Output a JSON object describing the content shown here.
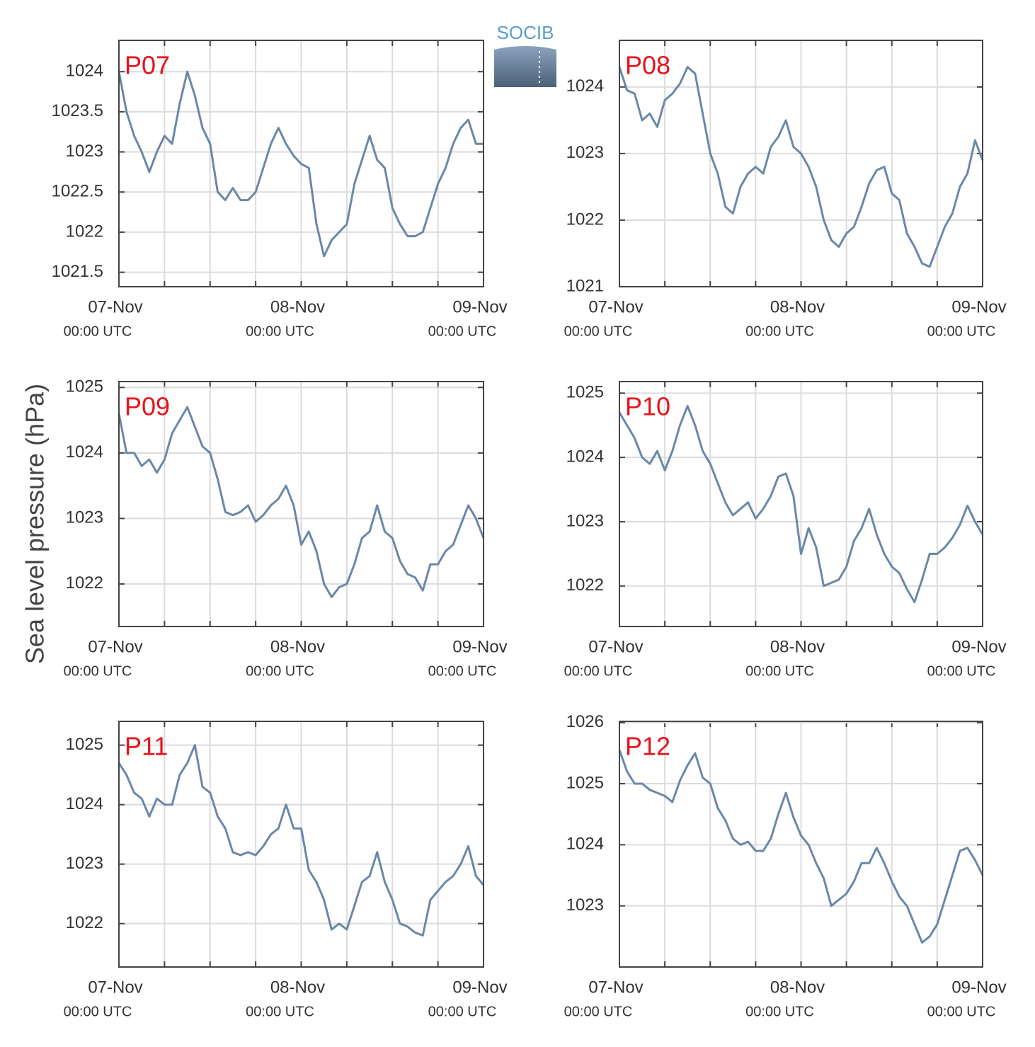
{
  "ylabel": "Sea level pressure (hPa)",
  "logo_text": "SOCIB",
  "chart_data": [
    {
      "type": "line",
      "title": "P07",
      "x": [
        0,
        1,
        2,
        3,
        4,
        5,
        6,
        7,
        8,
        9,
        10,
        11,
        12,
        13,
        14,
        15,
        16,
        17,
        18,
        19,
        20,
        21,
        22,
        23,
        24,
        25,
        26,
        27,
        28,
        29,
        30,
        31,
        32,
        33,
        34,
        35,
        36,
        37,
        38,
        39,
        40,
        41,
        42,
        43,
        44,
        45,
        46,
        47,
        48
      ],
      "series": [
        {
          "color": "#6a88a8",
          "values": [
            1024.0,
            1023.5,
            1023.2,
            1023.0,
            1022.75,
            1023.0,
            1023.2,
            1023.1,
            1023.6,
            1024.0,
            1023.7,
            1023.3,
            1023.1,
            1022.5,
            1022.4,
            1022.55,
            1022.4,
            1022.4,
            1022.5,
            1022.8,
            1023.1,
            1023.3,
            1023.1,
            1022.95,
            1022.85,
            1022.8,
            1022.1,
            1021.7,
            1021.9,
            1022.0,
            1022.1,
            1022.6,
            1022.9,
            1023.2,
            1022.9,
            1022.8,
            1022.3,
            1022.1,
            1021.95,
            1021.95,
            1022.0,
            1022.3,
            1022.6,
            1022.8,
            1023.1,
            1023.3,
            1023.4,
            1023.1,
            1023.1
          ]
        }
      ],
      "xlim": [
        0,
        48
      ],
      "ylim": [
        1021.32,
        1024.39
      ],
      "yticks": [
        1021.5,
        1022,
        1022.5,
        1023,
        1023.5,
        1024
      ],
      "xticks": [
        {
          "value": 0,
          "label": "07-Nov",
          "sublabel": "00:00 UTC"
        },
        {
          "value": 24,
          "label": "08-Nov",
          "sublabel": "00:00 UTC"
        },
        {
          "value": 48,
          "label": "09-Nov",
          "sublabel": "00:00 UTC"
        }
      ],
      "xminor_ticks": [
        6,
        12,
        18,
        30,
        36,
        42
      ],
      "grid": true
    },
    {
      "type": "line",
      "title": "P08",
      "x": [
        0,
        1,
        2,
        3,
        4,
        5,
        6,
        7,
        8,
        9,
        10,
        11,
        12,
        13,
        14,
        15,
        16,
        17,
        18,
        19,
        20,
        21,
        22,
        23,
        24,
        25,
        26,
        27,
        28,
        29,
        30,
        31,
        32,
        33,
        34,
        35,
        36,
        37,
        38,
        39,
        40,
        41,
        42,
        43,
        44,
        45,
        46,
        47,
        48
      ],
      "series": [
        {
          "color": "#6a88a8",
          "values": [
            1024.3,
            1023.95,
            1023.9,
            1023.5,
            1023.6,
            1023.4,
            1023.8,
            1023.9,
            1024.05,
            1024.3,
            1024.2,
            1023.6,
            1023.0,
            1022.7,
            1022.2,
            1022.1,
            1022.5,
            1022.7,
            1022.8,
            1022.7,
            1023.1,
            1023.25,
            1023.5,
            1023.1,
            1023.0,
            1022.8,
            1022.5,
            1022.0,
            1021.7,
            1021.6,
            1021.8,
            1021.9,
            1022.2,
            1022.55,
            1022.75,
            1022.8,
            1022.4,
            1022.3,
            1021.8,
            1021.6,
            1021.35,
            1021.3,
            1021.6,
            1021.9,
            1022.1,
            1022.5,
            1022.7,
            1023.2,
            1022.9
          ]
        }
      ],
      "xlim": [
        0,
        48
      ],
      "ylim": [
        1021,
        1024.7
      ],
      "yticks": [
        1021,
        1022,
        1023,
        1024
      ],
      "xticks": [
        {
          "value": 0,
          "label": "07-Nov",
          "sublabel": "00:00 UTC"
        },
        {
          "value": 24,
          "label": "08-Nov",
          "sublabel": "00:00 UTC"
        },
        {
          "value": 48,
          "label": "09-Nov",
          "sublabel": "00:00 UTC"
        }
      ],
      "xminor_ticks": [
        6,
        12,
        18,
        30,
        36,
        42
      ],
      "grid": true
    },
    {
      "type": "line",
      "title": "P09",
      "x": [
        0,
        1,
        2,
        3,
        4,
        5,
        6,
        7,
        8,
        9,
        10,
        11,
        12,
        13,
        14,
        15,
        16,
        17,
        18,
        19,
        20,
        21,
        22,
        23,
        24,
        25,
        26,
        27,
        28,
        29,
        30,
        31,
        32,
        33,
        34,
        35,
        36,
        37,
        38,
        39,
        40,
        41,
        42,
        43,
        44,
        45,
        46,
        47,
        48
      ],
      "series": [
        {
          "color": "#6a88a8",
          "values": [
            1024.6,
            1024.0,
            1024.0,
            1023.8,
            1023.9,
            1023.7,
            1023.9,
            1024.3,
            1024.5,
            1024.7,
            1024.4,
            1024.1,
            1024.0,
            1023.6,
            1023.1,
            1023.05,
            1023.1,
            1023.2,
            1022.95,
            1023.05,
            1023.2,
            1023.3,
            1023.5,
            1023.2,
            1022.6,
            1022.8,
            1022.5,
            1022.0,
            1021.8,
            1021.95,
            1022.0,
            1022.3,
            1022.7,
            1022.8,
            1023.2,
            1022.8,
            1022.7,
            1022.35,
            1022.15,
            1022.1,
            1021.9,
            1022.3,
            1022.3,
            1022.5,
            1022.6,
            1022.9,
            1023.2,
            1023.0,
            1022.7
          ]
        }
      ],
      "xlim": [
        0,
        48
      ],
      "ylim": [
        1021.35,
        1025.09
      ],
      "yticks": [
        1022,
        1023,
        1024,
        1025
      ],
      "xticks": [
        {
          "value": 0,
          "label": "07-Nov",
          "sublabel": "00:00 UTC"
        },
        {
          "value": 24,
          "label": "08-Nov",
          "sublabel": "00:00 UTC"
        },
        {
          "value": 48,
          "label": "09-Nov",
          "sublabel": "00:00 UTC"
        }
      ],
      "xminor_ticks": [
        6,
        12,
        18,
        30,
        36,
        42
      ],
      "grid": true
    },
    {
      "type": "line",
      "title": "P10",
      "x": [
        0,
        1,
        2,
        3,
        4,
        5,
        6,
        7,
        8,
        9,
        10,
        11,
        12,
        13,
        14,
        15,
        16,
        17,
        18,
        19,
        20,
        21,
        22,
        23,
        24,
        25,
        26,
        27,
        28,
        29,
        30,
        31,
        32,
        33,
        34,
        35,
        36,
        37,
        38,
        39,
        40,
        41,
        42,
        43,
        44,
        45,
        46,
        47,
        48
      ],
      "series": [
        {
          "color": "#6a88a8",
          "values": [
            1024.7,
            1024.5,
            1024.3,
            1024.0,
            1023.9,
            1024.1,
            1023.8,
            1024.1,
            1024.5,
            1024.8,
            1024.5,
            1024.1,
            1023.9,
            1023.6,
            1023.3,
            1023.1,
            1023.2,
            1023.3,
            1023.05,
            1023.2,
            1023.4,
            1023.7,
            1023.75,
            1023.4,
            1022.5,
            1022.9,
            1022.6,
            1022.0,
            1022.05,
            1022.1,
            1022.3,
            1022.7,
            1022.9,
            1023.2,
            1022.8,
            1022.5,
            1022.3,
            1022.2,
            1021.95,
            1021.75,
            1022.1,
            1022.5,
            1022.5,
            1022.6,
            1022.75,
            1022.95,
            1023.25,
            1023.0,
            1022.8
          ]
        }
      ],
      "xlim": [
        0,
        48
      ],
      "ylim": [
        1021.37,
        1025.18
      ],
      "yticks": [
        1022,
        1023,
        1024,
        1025
      ],
      "xticks": [
        {
          "value": 0,
          "label": "07-Nov",
          "sublabel": "00:00 UTC"
        },
        {
          "value": 24,
          "label": "08-Nov",
          "sublabel": "00:00 UTC"
        },
        {
          "value": 48,
          "label": "09-Nov",
          "sublabel": "00:00 UTC"
        }
      ],
      "xminor_ticks": [
        6,
        12,
        18,
        30,
        36,
        42
      ],
      "grid": true
    },
    {
      "type": "line",
      "title": "P11",
      "x": [
        0,
        1,
        2,
        3,
        4,
        5,
        6,
        7,
        8,
        9,
        10,
        11,
        12,
        13,
        14,
        15,
        16,
        17,
        18,
        19,
        20,
        21,
        22,
        23,
        24,
        25,
        26,
        27,
        28,
        29,
        30,
        31,
        32,
        33,
        34,
        35,
        36,
        37,
        38,
        39,
        40,
        41,
        42,
        43,
        44,
        45,
        46,
        47,
        48
      ],
      "series": [
        {
          "color": "#6a88a8",
          "values": [
            1024.7,
            1024.5,
            1024.2,
            1024.1,
            1023.8,
            1024.1,
            1024.0,
            1024.0,
            1024.5,
            1024.7,
            1025.0,
            1024.3,
            1024.2,
            1023.8,
            1023.6,
            1023.2,
            1023.15,
            1023.2,
            1023.15,
            1023.3,
            1023.5,
            1023.6,
            1024.0,
            1023.6,
            1023.6,
            1022.9,
            1022.7,
            1022.4,
            1021.9,
            1022.0,
            1021.9,
            1022.3,
            1022.7,
            1022.8,
            1023.2,
            1022.7,
            1022.4,
            1022.0,
            1021.95,
            1021.85,
            1021.8,
            1022.4,
            1022.55,
            1022.7,
            1022.8,
            1023.0,
            1023.3,
            1022.8,
            1022.65
          ]
        }
      ],
      "xlim": [
        0,
        48
      ],
      "ylim": [
        1021.27,
        1025.4
      ],
      "yticks": [
        1022,
        1023,
        1024,
        1025
      ],
      "xticks": [
        {
          "value": 0,
          "label": "07-Nov",
          "sublabel": "00:00 UTC"
        },
        {
          "value": 24,
          "label": "08-Nov",
          "sublabel": "00:00 UTC"
        },
        {
          "value": 48,
          "label": "09-Nov",
          "sublabel": "00:00 UTC"
        }
      ],
      "xminor_ticks": [
        6,
        12,
        18,
        30,
        36,
        42
      ],
      "grid": true
    },
    {
      "type": "line",
      "title": "P12",
      "x": [
        0,
        1,
        2,
        3,
        4,
        5,
        6,
        7,
        8,
        9,
        10,
        11,
        12,
        13,
        14,
        15,
        16,
        17,
        18,
        19,
        20,
        21,
        22,
        23,
        24,
        25,
        26,
        27,
        28,
        29,
        30,
        31,
        32,
        33,
        34,
        35,
        36,
        37,
        38,
        39,
        40,
        41,
        42,
        43,
        44,
        45,
        46,
        47,
        48
      ],
      "series": [
        {
          "color": "#6a88a8",
          "values": [
            1025.55,
            1025.2,
            1025.0,
            1025.0,
            1024.9,
            1024.85,
            1024.8,
            1024.7,
            1025.05,
            1025.3,
            1025.5,
            1025.1,
            1025.0,
            1024.6,
            1024.4,
            1024.1,
            1024.0,
            1024.05,
            1023.9,
            1023.9,
            1024.1,
            1024.5,
            1024.85,
            1024.45,
            1024.15,
            1024.0,
            1023.7,
            1023.45,
            1023.0,
            1023.1,
            1023.2,
            1023.4,
            1023.7,
            1023.7,
            1023.95,
            1023.7,
            1023.4,
            1023.15,
            1023.0,
            1022.7,
            1022.4,
            1022.5,
            1022.7,
            1023.1,
            1023.5,
            1023.9,
            1023.95,
            1023.75,
            1023.5
          ]
        }
      ],
      "xlim": [
        0,
        48
      ],
      "ylim": [
        1022.0,
        1026.02
      ],
      "yticks": [
        1023,
        1024,
        1025,
        1026
      ],
      "xticks": [
        {
          "value": 0,
          "label": "07-Nov",
          "sublabel": "00:00 UTC"
        },
        {
          "value": 24,
          "label": "08-Nov",
          "sublabel": "00:00 UTC"
        },
        {
          "value": 48,
          "label": "09-Nov",
          "sublabel": "00:00 UTC"
        }
      ],
      "xminor_ticks": [
        6,
        12,
        18,
        30,
        36,
        42
      ],
      "grid": true
    }
  ]
}
